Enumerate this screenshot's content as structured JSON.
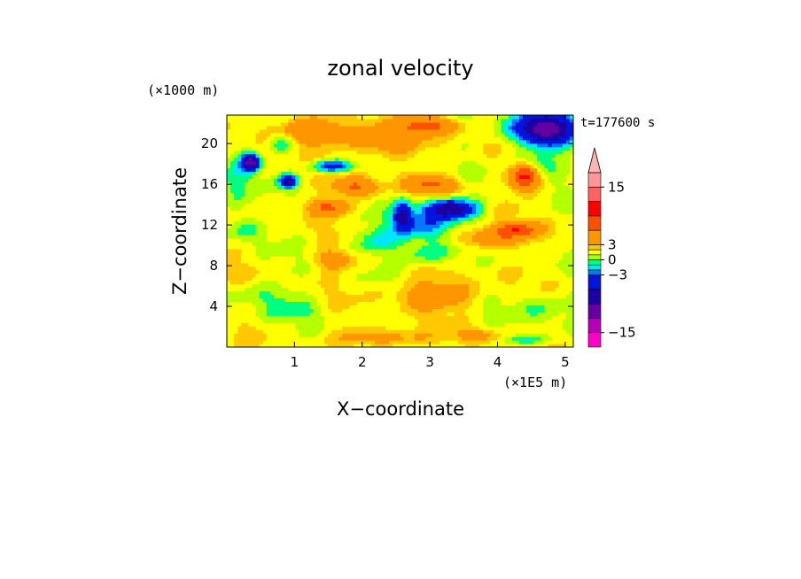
{
  "chart_data": {
    "type": "heatmap",
    "title": "zonal velocity",
    "xlabel": "X−coordinate",
    "ylabel": "Z−coordinate",
    "x_unit": "(×1E5 m)",
    "y_unit": "(×1000 m)",
    "time_label": "t=177600 s",
    "xlim": [
      0,
      5.12
    ],
    "ylim": [
      0,
      22.8
    ],
    "x_ticks": [
      "1",
      "2",
      "3",
      "4",
      "5"
    ],
    "y_ticks": [
      "4",
      "8",
      "12",
      "16",
      "20"
    ],
    "colorbar": {
      "levels": [
        -18,
        -15,
        -12,
        -9,
        -6,
        -3,
        -2,
        -1,
        0,
        1,
        2,
        3,
        6,
        9,
        12,
        15,
        18
      ],
      "colors": [
        "#ff00c8",
        "#b400b4",
        "#6400a0",
        "#1e00a0",
        "#0014dc",
        "#0078ff",
        "#00e6ff",
        "#00ff80",
        "#b4ff00",
        "#ffff00",
        "#ffc800",
        "#ff9600",
        "#ff5000",
        "#ff0000",
        "#ff6464",
        "#ff9696",
        "#ffb4b4"
      ],
      "tick_labels": [
        "15",
        "3",
        "0",
        "−3",
        "−15"
      ],
      "tick_values": [
        15,
        3,
        0,
        -3,
        -15
      ]
    },
    "field": {
      "background": 1.5,
      "features": [
        {
          "x": 2.9,
          "z": 12.0,
          "sx": 0.45,
          "sz": 1.6,
          "v": -4
        },
        {
          "x": 3.3,
          "z": 13.6,
          "sx": 0.35,
          "sz": 0.9,
          "v": -10
        },
        {
          "x": 2.6,
          "z": 13.0,
          "sx": 0.12,
          "sz": 1.4,
          "v": -8
        },
        {
          "x": 3.0,
          "z": 9.2,
          "sx": 0.45,
          "sz": 1.0,
          "v": -2.5
        },
        {
          "x": 3.9,
          "z": 10.8,
          "sx": 0.5,
          "sz": 1.0,
          "v": 4
        },
        {
          "x": 2.2,
          "z": 10.5,
          "sx": 0.35,
          "sz": 1.2,
          "v": -2.5
        },
        {
          "x": 4.7,
          "z": 21.5,
          "sx": 0.45,
          "sz": 1.5,
          "v": -12
        },
        {
          "x": 4.55,
          "z": 18.0,
          "sx": 0.35,
          "sz": 1.2,
          "v": -3
        },
        {
          "x": 4.4,
          "z": 16.8,
          "sx": 0.2,
          "sz": 1.2,
          "v": 9
        },
        {
          "x": 0.35,
          "z": 18.2,
          "sx": 0.12,
          "sz": 0.8,
          "v": -12
        },
        {
          "x": 0.12,
          "z": 16.0,
          "sx": 0.2,
          "sz": 3.5,
          "v": -2.5
        },
        {
          "x": 0.9,
          "z": 16.3,
          "sx": 0.12,
          "sz": 0.6,
          "v": -9
        },
        {
          "x": 1.55,
          "z": 17.8,
          "sx": 0.3,
          "sz": 0.6,
          "v": -6
        },
        {
          "x": 0.8,
          "z": 20.3,
          "sx": 0.2,
          "sz": 1.0,
          "v": -3
        },
        {
          "x": 1.2,
          "z": 21.2,
          "sx": 0.6,
          "sz": 1.2,
          "v": 4
        },
        {
          "x": 2.3,
          "z": 20.5,
          "sx": 0.5,
          "sz": 1.5,
          "v": 4
        },
        {
          "x": 3.0,
          "z": 21.8,
          "sx": 0.4,
          "sz": 0.8,
          "v": 5
        },
        {
          "x": 1.5,
          "z": 13.8,
          "sx": 0.3,
          "sz": 0.8,
          "v": 5
        },
        {
          "x": 1.9,
          "z": 15.8,
          "sx": 0.3,
          "sz": 0.9,
          "v": 5
        },
        {
          "x": 3.05,
          "z": 16.0,
          "sx": 0.35,
          "sz": 0.8,
          "v": 5
        },
        {
          "x": 4.3,
          "z": 11.6,
          "sx": 0.3,
          "sz": 0.6,
          "v": 6
        },
        {
          "x": 1.6,
          "z": 8.6,
          "sx": 0.25,
          "sz": 0.8,
          "v": 4
        },
        {
          "x": 0.6,
          "z": 5.2,
          "sx": 0.5,
          "sz": 1.2,
          "v": -1.5
        },
        {
          "x": 1.0,
          "z": 3.6,
          "sx": 0.45,
          "sz": 1.0,
          "v": -1.5
        },
        {
          "x": 3.1,
          "z": 5.2,
          "sx": 0.6,
          "sz": 1.4,
          "v": 3.5
        },
        {
          "x": 4.6,
          "z": 4.0,
          "sx": 0.5,
          "sz": 1.5,
          "v": -1.5
        },
        {
          "x": 4.4,
          "z": 0.8,
          "sx": 0.3,
          "sz": 0.5,
          "v": -3
        },
        {
          "x": 2.3,
          "z": 1.0,
          "sx": 0.6,
          "sz": 0.8,
          "v": 3
        },
        {
          "x": 3.7,
          "z": 1.2,
          "sx": 0.3,
          "sz": 0.6,
          "v": 3
        },
        {
          "x": 0.3,
          "z": 11.5,
          "sx": 0.25,
          "sz": 1.0,
          "v": -1.5
        }
      ]
    }
  }
}
